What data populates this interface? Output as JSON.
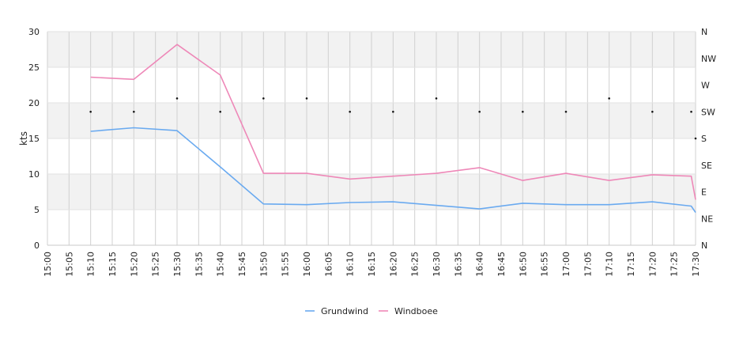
{
  "chart_data": {
    "type": "line",
    "ylabel": "kts",
    "ylim": [
      0,
      30
    ],
    "y_ticks": [
      "0",
      "5",
      "10",
      "15",
      "20",
      "25",
      "30"
    ],
    "x_ticks": [
      "15:00",
      "15:05",
      "15:10",
      "15:15",
      "15:20",
      "15:25",
      "15:30",
      "15:35",
      "15:40",
      "15:45",
      "15:50",
      "15:55",
      "16:00",
      "16:05",
      "16:10",
      "16:15",
      "16:20",
      "16:25",
      "16:30",
      "16:35",
      "16:40",
      "16:45",
      "16:50",
      "16:55",
      "17:00",
      "17:05",
      "17:10",
      "17:15",
      "17:20",
      "17:25",
      "17:30"
    ],
    "right_axis_ticks": [
      "N",
      "NE",
      "E",
      "SE",
      "S",
      "SW",
      "W",
      "NW",
      "N"
    ],
    "grid": true,
    "legend_position": "bottom",
    "series": [
      {
        "name": "Grundwind",
        "color": "#6aaaf0",
        "x": [
          "15:10",
          "15:20",
          "15:30",
          "15:40",
          "15:50",
          "16:00",
          "16:10",
          "16:20",
          "16:30",
          "16:40",
          "16:50",
          "17:00",
          "17:10",
          "17:20",
          "17:29",
          "17:30"
        ],
        "values": [
          16.0,
          16.5,
          16.1,
          11.0,
          5.8,
          5.7,
          6.0,
          6.1,
          5.6,
          5.1,
          5.9,
          5.7,
          5.7,
          6.1,
          5.5,
          4.6
        ]
      },
      {
        "name": "Windboee",
        "color": "#ee88b8",
        "x": [
          "15:10",
          "15:20",
          "15:30",
          "15:40",
          "15:50",
          "16:00",
          "16:10",
          "16:20",
          "16:30",
          "16:40",
          "16:50",
          "17:00",
          "17:10",
          "17:20",
          "17:29",
          "17:30"
        ],
        "values": [
          23.6,
          23.3,
          28.2,
          23.9,
          10.1,
          10.1,
          9.3,
          9.7,
          10.1,
          10.9,
          9.1,
          10.1,
          9.1,
          9.9,
          9.7,
          6.4
        ]
      }
    ],
    "direction_markers": {
      "x": [
        "15:10",
        "15:20",
        "15:30",
        "15:40",
        "15:50",
        "16:00",
        "16:10",
        "16:20",
        "16:30",
        "16:40",
        "16:50",
        "17:00",
        "17:10",
        "17:20",
        "17:29",
        "17:30"
      ],
      "values": [
        "SW",
        "SW",
        "SW/W",
        "SW",
        "SW/W",
        "SW/W",
        "SW",
        "SW",
        "SW/W",
        "SW",
        "SW",
        "SW",
        "SW/W",
        "SW",
        "SW",
        "S"
      ]
    }
  }
}
